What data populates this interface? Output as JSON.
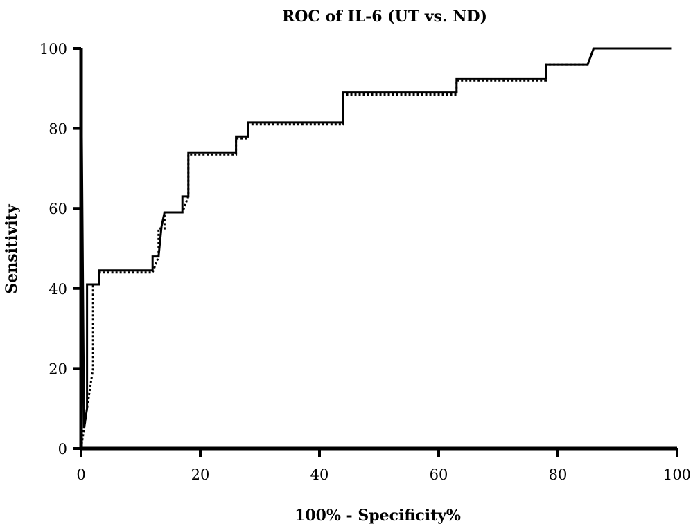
{
  "chart_data": {
    "type": "line",
    "title": "ROC of IL-6 (UT vs. ND)",
    "xlabel": "100% - Specificity%",
    "ylabel": "Sensitivity",
    "xlim": [
      0,
      100
    ],
    "ylim": [
      0,
      100
    ],
    "xticks": [
      "0",
      "20",
      "40",
      "60",
      "80",
      "100"
    ],
    "yticks": [
      "0",
      "20",
      "40",
      "60",
      "80",
      "100"
    ],
    "grid": false,
    "legend": "none",
    "series": [
      {
        "style": "solid",
        "x": [
          0,
          0,
          0.5,
          1,
          1,
          1.5,
          2,
          3,
          3,
          12,
          12,
          13,
          13.5,
          14,
          17,
          17,
          18,
          18,
          26,
          26,
          28,
          28,
          44,
          44,
          63,
          63,
          78,
          78,
          85,
          86,
          99
        ],
        "y": [
          0,
          100,
          5,
          10,
          41,
          41,
          41,
          41,
          44.5,
          44.5,
          48,
          48,
          55.5,
          59,
          59,
          63,
          63,
          74,
          74,
          78,
          78,
          81.5,
          81.5,
          89,
          89,
          92.5,
          92.5,
          96,
          96,
          100,
          100
        ]
      },
      {
        "style": "dashed",
        "x": [
          0,
          0.5,
          1,
          1.5,
          2,
          2,
          3,
          3,
          12,
          13,
          13,
          14,
          14,
          17,
          18,
          18,
          26,
          26,
          28,
          28,
          44,
          44,
          63,
          63,
          78,
          78,
          85,
          86,
          99
        ],
        "y": [
          0,
          5,
          10,
          15,
          20,
          41,
          41,
          44,
          44,
          48,
          55,
          55,
          59,
          59,
          63,
          73.5,
          73.5,
          77.5,
          77.5,
          81,
          81,
          88.5,
          88.5,
          92,
          92,
          96,
          96,
          100,
          100
        ]
      }
    ]
  }
}
